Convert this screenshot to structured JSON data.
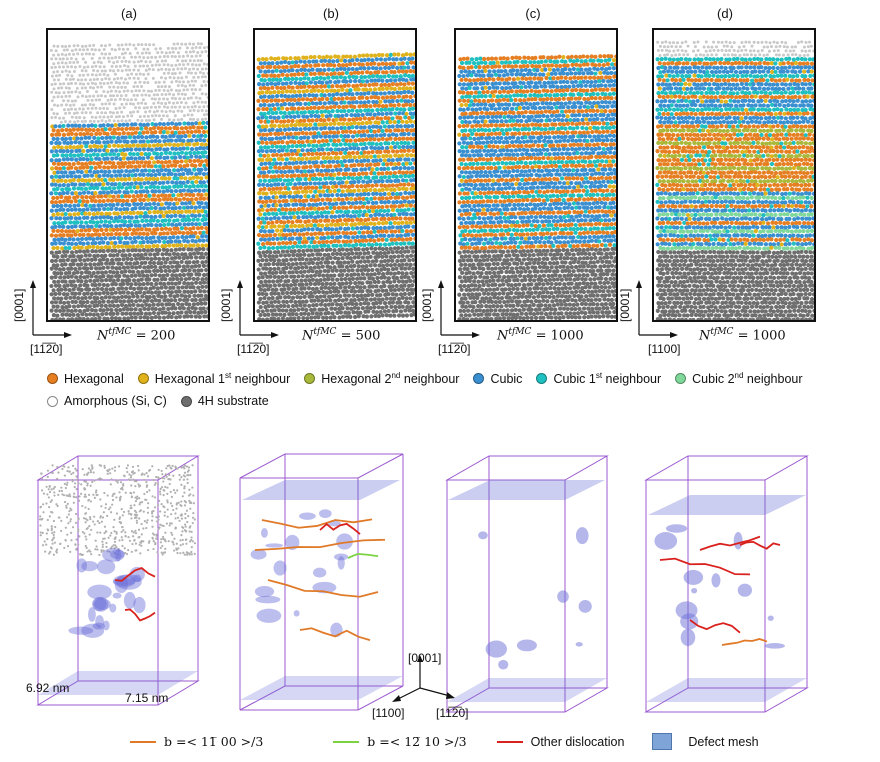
{
  "panels": [
    {
      "label": "(a)",
      "ntf_value": "200",
      "axis_h": "[11̅2̅0]"
    },
    {
      "label": "(b)",
      "ntf_value": "500",
      "axis_h": "[11̅2̅0]"
    },
    {
      "label": "(c)",
      "ntf_value": "1000",
      "axis_h": "[11̅2̅0]"
    },
    {
      "label": "(d)",
      "ntf_value": "1000",
      "axis_h": "[1100]"
    }
  ],
  "axis_v_label": "[0001]",
  "ntf_symbol": "N",
  "ntf_superscript": "tfMC",
  "ntf_equals": " = ",
  "legend_top": {
    "row1": [
      {
        "label": "Hexagonal",
        "sup": "",
        "tail": "",
        "color": "#e67e22"
      },
      {
        "label": "Hexagonal 1",
        "sup": "st",
        "tail": " neighbour",
        "color": "#e0b21b"
      },
      {
        "label": "Hexagonal 2",
        "sup": "nd",
        "tail": " neighbour",
        "color": "#a8b83a"
      },
      {
        "label": "Cubic",
        "sup": "",
        "tail": "",
        "color": "#3a8fd0"
      },
      {
        "label": "Cubic 1",
        "sup": "st",
        "tail": " neighbour",
        "color": "#1fc0c0"
      },
      {
        "label": "Cubic 2",
        "sup": "nd",
        "tail": " neighbour",
        "color": "#7fd89a"
      }
    ],
    "row2": [
      {
        "label": "Amorphous (Si, C)",
        "sup": "",
        "tail": "",
        "color": "#ffffff"
      },
      {
        "label": "4H substrate",
        "sup": "",
        "tail": "",
        "color": "#6e6e6e"
      }
    ]
  },
  "dims": {
    "width": "6.92 nm",
    "depth": "7.15 nm"
  },
  "axes3d": {
    "up": "[0001]",
    "left": "[1100]",
    "right": "[11̅2̅0]"
  },
  "legend_bottom": [
    {
      "label": "b =< 11̅ 00 >/3",
      "type": "line",
      "color": "#e07a28"
    },
    {
      "label": "b =< 12̅ 10 >/3",
      "type": "line",
      "color": "#7bd342"
    },
    {
      "label": "Other dislocation",
      "type": "line",
      "color": "#d9211e"
    },
    {
      "label": "Defect mesh",
      "type": "mesh",
      "color": "#7fa5d8"
    }
  ],
  "colors": {
    "hexagonal": "#e67e22",
    "hex1": "#e0b21b",
    "hex2": "#a8b83a",
    "cubic": "#3a8fd0",
    "cubic1": "#1fc0c0",
    "cubic2": "#7fd89a",
    "amorphous": "#c8c8c8",
    "substrate": "#6e6e6e",
    "box_edge": "#9b59d0",
    "mesh": "#6b6fd8"
  }
}
